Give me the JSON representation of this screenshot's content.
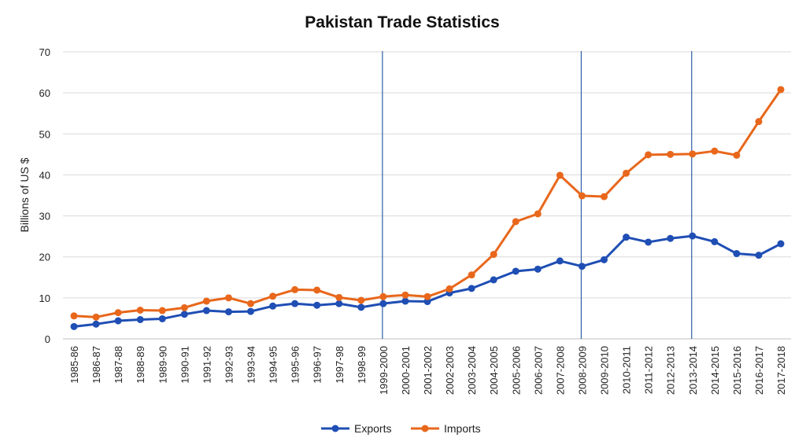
{
  "chart_data": {
    "type": "line",
    "title": "Pakistan Trade Statistics",
    "xlabel": "",
    "ylabel": "Billions of US $",
    "ylim": [
      0,
      70
    ],
    "yticks": [
      0,
      10,
      20,
      30,
      40,
      50,
      60,
      70
    ],
    "grid": true,
    "legend_position": "bottom",
    "categories": [
      "1985-86",
      "1986-87",
      "1987-88",
      "1988-89",
      "1989-90",
      "1990-91",
      "1991-92",
      "1992-93",
      "1993-94",
      "1994-95",
      "1995-96",
      "1996-97",
      "1997-98",
      "1998-99",
      "1999-2000",
      "2000-2001",
      "2001-2002",
      "2002-2003",
      "2003-2004",
      "2004-2005",
      "2005-2006",
      "2006-2007",
      "2007-2008",
      "2008-2009",
      "2009-2010",
      "2010-2011",
      "2011-2012",
      "2012-2013",
      "2013-2014",
      "2014-2015",
      "2015-2016",
      "2016-2017",
      "2017-2018"
    ],
    "series": [
      {
        "name": "Exports",
        "color": "#1f4eb4",
        "values": [
          3.0,
          3.6,
          4.4,
          4.7,
          4.9,
          6.0,
          6.9,
          6.6,
          6.7,
          8.0,
          8.6,
          8.2,
          8.6,
          7.7,
          8.6,
          9.2,
          9.1,
          11.2,
          12.3,
          14.4,
          16.5,
          17.0,
          19.0,
          17.7,
          19.3,
          24.8,
          23.6,
          24.5,
          25.1,
          23.7,
          20.8,
          20.4,
          23.2
        ]
      },
      {
        "name": "Imports",
        "color": "#e8671b",
        "values": [
          5.6,
          5.3,
          6.4,
          7.0,
          6.9,
          7.6,
          9.2,
          10.0,
          8.6,
          10.4,
          12.0,
          11.9,
          10.1,
          9.4,
          10.3,
          10.7,
          10.3,
          12.2,
          15.6,
          20.6,
          28.6,
          30.5,
          39.9,
          34.9,
          34.7,
          40.4,
          44.9,
          45.0,
          45.1,
          45.8,
          44.8,
          53.0,
          60.8
        ]
      }
    ],
    "markers": [
      "1999-2000",
      "2008-2009",
      "2013-2014"
    ],
    "marker_color": "#2f5fa8"
  }
}
